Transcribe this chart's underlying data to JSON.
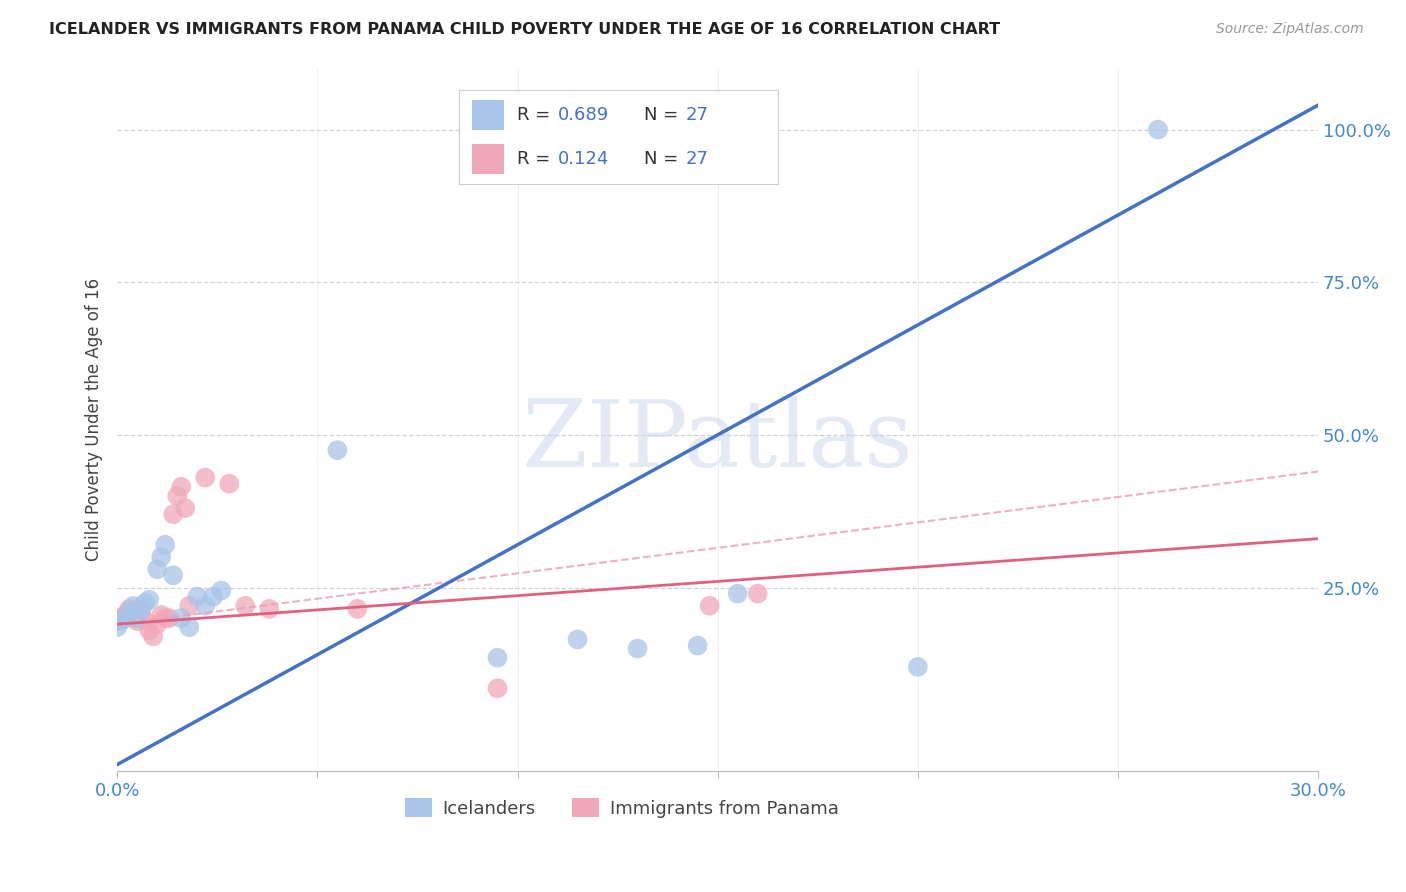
{
  "title": "ICELANDER VS IMMIGRANTS FROM PANAMA CHILD POVERTY UNDER THE AGE OF 16 CORRELATION CHART",
  "source": "Source: ZipAtlas.com",
  "ylabel": "Child Poverty Under the Age of 16",
  "watermark": "ZIPatlas",
  "legend_blue_r": "0.689",
  "legend_blue_n": "27",
  "legend_pink_r": "0.124",
  "legend_pink_n": "27",
  "blue_color": "#a8c4e8",
  "pink_color": "#f0a8b8",
  "blue_line_color": "#4472c4",
  "pink_line_color": "#e06080",
  "pink_dash_color": "#e8a0b0",
  "grid_color": "#d0d0dc",
  "background_color": "#ffffff",
  "blue_scatter_x": [
    0.0,
    0.001,
    0.002,
    0.003,
    0.004,
    0.005,
    0.006,
    0.007,
    0.008,
    0.01,
    0.011,
    0.012,
    0.014,
    0.016,
    0.018,
    0.02,
    0.022,
    0.024,
    0.026,
    0.055,
    0.095,
    0.115,
    0.13,
    0.145,
    0.155,
    0.2,
    0.26
  ],
  "blue_scatter_y": [
    0.185,
    0.195,
    0.2,
    0.21,
    0.22,
    0.2,
    0.215,
    0.225,
    0.23,
    0.28,
    0.3,
    0.32,
    0.27,
    0.2,
    0.185,
    0.235,
    0.22,
    0.235,
    0.245,
    0.475,
    0.135,
    0.165,
    0.15,
    0.155,
    0.24,
    0.12,
    1.0
  ],
  "pink_scatter_x": [
    0.0,
    0.001,
    0.002,
    0.003,
    0.004,
    0.005,
    0.006,
    0.007,
    0.008,
    0.009,
    0.01,
    0.011,
    0.012,
    0.013,
    0.014,
    0.015,
    0.016,
    0.017,
    0.018,
    0.022,
    0.028,
    0.032,
    0.038,
    0.06,
    0.095,
    0.148,
    0.16
  ],
  "pink_scatter_y": [
    0.195,
    0.2,
    0.205,
    0.215,
    0.2,
    0.195,
    0.21,
    0.195,
    0.18,
    0.17,
    0.19,
    0.205,
    0.2,
    0.2,
    0.37,
    0.4,
    0.415,
    0.38,
    0.22,
    0.43,
    0.42,
    0.22,
    0.215,
    0.215,
    0.085,
    0.22,
    0.24
  ],
  "xlim": [
    0.0,
    0.3
  ],
  "ylim": [
    -0.05,
    1.1
  ],
  "blue_trend_x": [
    0.0,
    0.3
  ],
  "blue_trend_y": [
    -0.04,
    1.04
  ],
  "pink_trend_x": [
    0.0,
    0.3
  ],
  "pink_trend_y": [
    0.19,
    0.33
  ],
  "pink_dash_trend_x": [
    0.0,
    0.3
  ],
  "pink_dash_trend_y": [
    0.19,
    0.44
  ],
  "xtick_positions": [
    0.0,
    0.05,
    0.1,
    0.15,
    0.2,
    0.25,
    0.3
  ],
  "ytick_positions": [
    0.25,
    0.5,
    0.75,
    1.0
  ],
  "ytick_labels": [
    "25.0%",
    "50.0%",
    "75.0%",
    "100.0%"
  ]
}
